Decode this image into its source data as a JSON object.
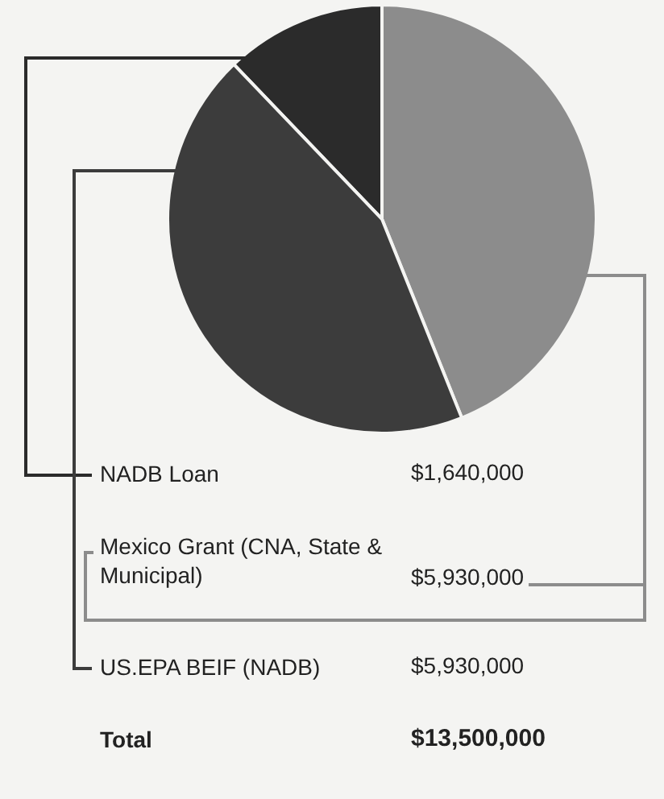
{
  "chart_data": {
    "type": "pie",
    "categories": [
      "NADB Loan",
      "Mexico Grant (CNA, State & Municipal)",
      "US.EPA BEIF (NADB)"
    ],
    "values": [
      1640000,
      5930000,
      5930000
    ],
    "colors": [
      "#2b2b2b",
      "#8c8c8c",
      "#3c3c3c"
    ],
    "value_labels": [
      "$1,640,000",
      "$5,930,000",
      "$5,930,000"
    ],
    "legend": "bottom",
    "annotations": [
      "Total",
      "$13,500,000"
    ]
  }
}
